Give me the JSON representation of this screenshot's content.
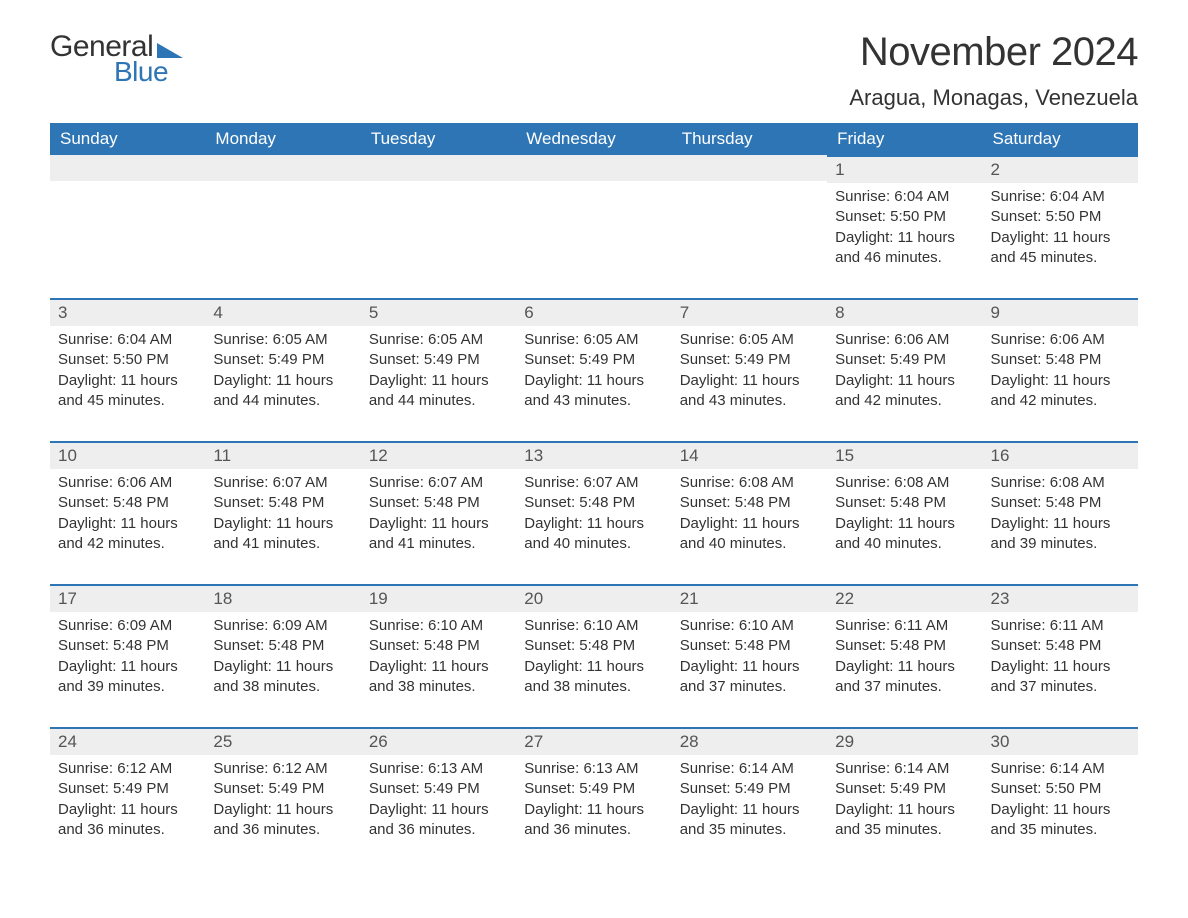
{
  "logo": {
    "line1": "General",
    "line2": "Blue"
  },
  "title": "November 2024",
  "location": "Aragua, Monagas, Venezuela",
  "colors": {
    "brand_blue": "#2e75b6",
    "header_text": "#ffffff",
    "body_text": "#333333",
    "day_header_bg": "#eeeeee",
    "background": "#ffffff"
  },
  "calendar": {
    "type": "table",
    "columns": [
      "Sunday",
      "Monday",
      "Tuesday",
      "Wednesday",
      "Thursday",
      "Friday",
      "Saturday"
    ],
    "weeks": [
      [
        null,
        null,
        null,
        null,
        null,
        {
          "n": "1",
          "sr": "Sunrise: 6:04 AM",
          "ss": "Sunset: 5:50 PM",
          "d1": "Daylight: 11 hours",
          "d2": "and 46 minutes."
        },
        {
          "n": "2",
          "sr": "Sunrise: 6:04 AM",
          "ss": "Sunset: 5:50 PM",
          "d1": "Daylight: 11 hours",
          "d2": "and 45 minutes."
        }
      ],
      [
        {
          "n": "3",
          "sr": "Sunrise: 6:04 AM",
          "ss": "Sunset: 5:50 PM",
          "d1": "Daylight: 11 hours",
          "d2": "and 45 minutes."
        },
        {
          "n": "4",
          "sr": "Sunrise: 6:05 AM",
          "ss": "Sunset: 5:49 PM",
          "d1": "Daylight: 11 hours",
          "d2": "and 44 minutes."
        },
        {
          "n": "5",
          "sr": "Sunrise: 6:05 AM",
          "ss": "Sunset: 5:49 PM",
          "d1": "Daylight: 11 hours",
          "d2": "and 44 minutes."
        },
        {
          "n": "6",
          "sr": "Sunrise: 6:05 AM",
          "ss": "Sunset: 5:49 PM",
          "d1": "Daylight: 11 hours",
          "d2": "and 43 minutes."
        },
        {
          "n": "7",
          "sr": "Sunrise: 6:05 AM",
          "ss": "Sunset: 5:49 PM",
          "d1": "Daylight: 11 hours",
          "d2": "and 43 minutes."
        },
        {
          "n": "8",
          "sr": "Sunrise: 6:06 AM",
          "ss": "Sunset: 5:49 PM",
          "d1": "Daylight: 11 hours",
          "d2": "and 42 minutes."
        },
        {
          "n": "9",
          "sr": "Sunrise: 6:06 AM",
          "ss": "Sunset: 5:48 PM",
          "d1": "Daylight: 11 hours",
          "d2": "and 42 minutes."
        }
      ],
      [
        {
          "n": "10",
          "sr": "Sunrise: 6:06 AM",
          "ss": "Sunset: 5:48 PM",
          "d1": "Daylight: 11 hours",
          "d2": "and 42 minutes."
        },
        {
          "n": "11",
          "sr": "Sunrise: 6:07 AM",
          "ss": "Sunset: 5:48 PM",
          "d1": "Daylight: 11 hours",
          "d2": "and 41 minutes."
        },
        {
          "n": "12",
          "sr": "Sunrise: 6:07 AM",
          "ss": "Sunset: 5:48 PM",
          "d1": "Daylight: 11 hours",
          "d2": "and 41 minutes."
        },
        {
          "n": "13",
          "sr": "Sunrise: 6:07 AM",
          "ss": "Sunset: 5:48 PM",
          "d1": "Daylight: 11 hours",
          "d2": "and 40 minutes."
        },
        {
          "n": "14",
          "sr": "Sunrise: 6:08 AM",
          "ss": "Sunset: 5:48 PM",
          "d1": "Daylight: 11 hours",
          "d2": "and 40 minutes."
        },
        {
          "n": "15",
          "sr": "Sunrise: 6:08 AM",
          "ss": "Sunset: 5:48 PM",
          "d1": "Daylight: 11 hours",
          "d2": "and 40 minutes."
        },
        {
          "n": "16",
          "sr": "Sunrise: 6:08 AM",
          "ss": "Sunset: 5:48 PM",
          "d1": "Daylight: 11 hours",
          "d2": "and 39 minutes."
        }
      ],
      [
        {
          "n": "17",
          "sr": "Sunrise: 6:09 AM",
          "ss": "Sunset: 5:48 PM",
          "d1": "Daylight: 11 hours",
          "d2": "and 39 minutes."
        },
        {
          "n": "18",
          "sr": "Sunrise: 6:09 AM",
          "ss": "Sunset: 5:48 PM",
          "d1": "Daylight: 11 hours",
          "d2": "and 38 minutes."
        },
        {
          "n": "19",
          "sr": "Sunrise: 6:10 AM",
          "ss": "Sunset: 5:48 PM",
          "d1": "Daylight: 11 hours",
          "d2": "and 38 minutes."
        },
        {
          "n": "20",
          "sr": "Sunrise: 6:10 AM",
          "ss": "Sunset: 5:48 PM",
          "d1": "Daylight: 11 hours",
          "d2": "and 38 minutes."
        },
        {
          "n": "21",
          "sr": "Sunrise: 6:10 AM",
          "ss": "Sunset: 5:48 PM",
          "d1": "Daylight: 11 hours",
          "d2": "and 37 minutes."
        },
        {
          "n": "22",
          "sr": "Sunrise: 6:11 AM",
          "ss": "Sunset: 5:48 PM",
          "d1": "Daylight: 11 hours",
          "d2": "and 37 minutes."
        },
        {
          "n": "23",
          "sr": "Sunrise: 6:11 AM",
          "ss": "Sunset: 5:48 PM",
          "d1": "Daylight: 11 hours",
          "d2": "and 37 minutes."
        }
      ],
      [
        {
          "n": "24",
          "sr": "Sunrise: 6:12 AM",
          "ss": "Sunset: 5:49 PM",
          "d1": "Daylight: 11 hours",
          "d2": "and 36 minutes."
        },
        {
          "n": "25",
          "sr": "Sunrise: 6:12 AM",
          "ss": "Sunset: 5:49 PM",
          "d1": "Daylight: 11 hours",
          "d2": "and 36 minutes."
        },
        {
          "n": "26",
          "sr": "Sunrise: 6:13 AM",
          "ss": "Sunset: 5:49 PM",
          "d1": "Daylight: 11 hours",
          "d2": "and 36 minutes."
        },
        {
          "n": "27",
          "sr": "Sunrise: 6:13 AM",
          "ss": "Sunset: 5:49 PM",
          "d1": "Daylight: 11 hours",
          "d2": "and 36 minutes."
        },
        {
          "n": "28",
          "sr": "Sunrise: 6:14 AM",
          "ss": "Sunset: 5:49 PM",
          "d1": "Daylight: 11 hours",
          "d2": "and 35 minutes."
        },
        {
          "n": "29",
          "sr": "Sunrise: 6:14 AM",
          "ss": "Sunset: 5:49 PM",
          "d1": "Daylight: 11 hours",
          "d2": "and 35 minutes."
        },
        {
          "n": "30",
          "sr": "Sunrise: 6:14 AM",
          "ss": "Sunset: 5:50 PM",
          "d1": "Daylight: 11 hours",
          "d2": "and 35 minutes."
        }
      ]
    ]
  }
}
